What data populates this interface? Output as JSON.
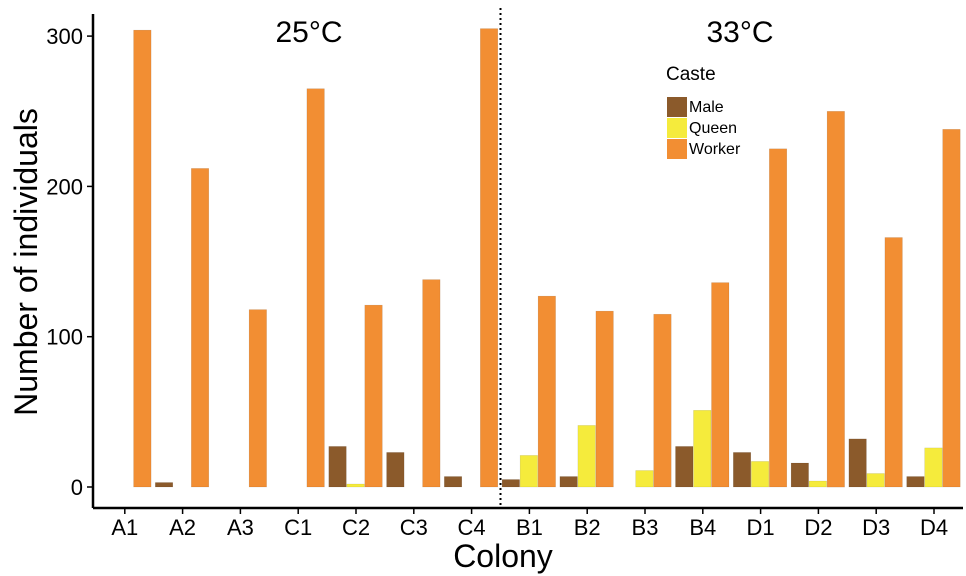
{
  "chart_data": {
    "type": "bar",
    "xlabel": "Colony",
    "ylabel": "Number of individuals",
    "ylim": [
      0,
      310
    ],
    "yticks": [
      0,
      100,
      200,
      300
    ],
    "grid": false,
    "panels": [
      {
        "label": "25°C",
        "categories": [
          "A1",
          "A2",
          "A3",
          "C1",
          "C2",
          "C3",
          "C4"
        ]
      },
      {
        "label": "33°C",
        "categories": [
          "B1",
          "B2",
          "B3",
          "B4",
          "D1",
          "D2",
          "D3",
          "D4"
        ]
      }
    ],
    "categories": [
      "A1",
      "A2",
      "A3",
      "C1",
      "C2",
      "C3",
      "C4",
      "B1",
      "B2",
      "B3",
      "B4",
      "D1",
      "D2",
      "D3",
      "D4"
    ],
    "series": [
      {
        "name": "Male",
        "color": "#8B5A2B",
        "values": [
          0,
          3,
          0,
          0,
          27,
          23,
          7,
          5,
          7,
          0,
          27,
          23,
          16,
          32,
          7
        ]
      },
      {
        "name": "Queen",
        "color": "#F5EB3C",
        "values": [
          0,
          0,
          0,
          0,
          2,
          0,
          0,
          21,
          41,
          11,
          51,
          17,
          4,
          9,
          26
        ]
      },
      {
        "name": "Worker",
        "color": "#F28E33",
        "values": [
          304,
          212,
          118,
          265,
          121,
          138,
          305,
          127,
          117,
          115,
          136,
          225,
          250,
          166,
          238
        ]
      }
    ],
    "legend": {
      "title": "Caste",
      "position": "top-right"
    }
  }
}
